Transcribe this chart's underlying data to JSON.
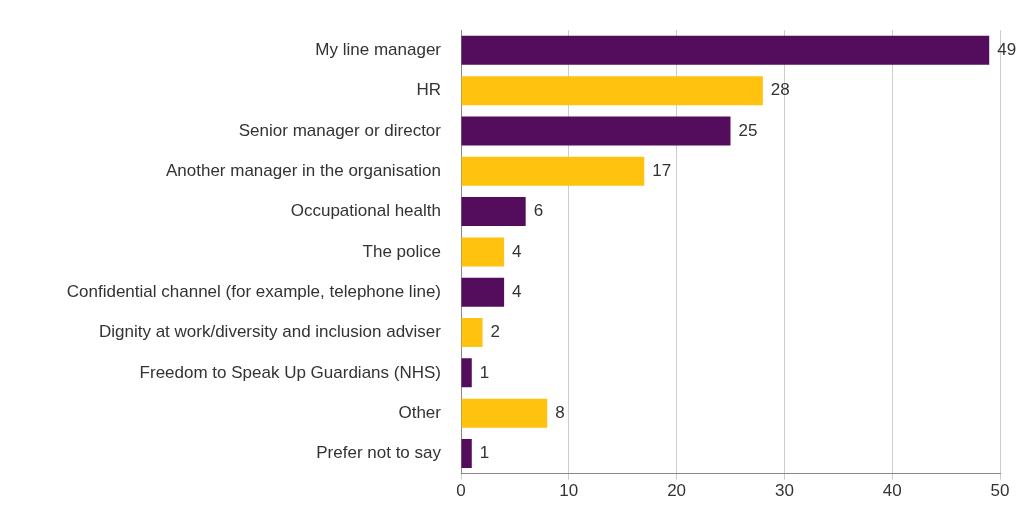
{
  "chart_data": {
    "type": "bar",
    "orientation": "horizontal",
    "categories": [
      "My line manager",
      "HR",
      "Senior manager or director",
      "Another manager in the organisation",
      "Occupational health",
      "The police",
      "Confidential channel (for example, telephone line)",
      "Dignity at work/diversity and inclusion adviser",
      "Freedom to Speak Up Guardians (NHS)",
      "Other",
      "Prefer not to say"
    ],
    "values": [
      49,
      28,
      25,
      17,
      6,
      4,
      4,
      2,
      1,
      8,
      1
    ],
    "colors": [
      "#540d5c",
      "#ffc20e",
      "#540d5c",
      "#ffc20e",
      "#540d5c",
      "#ffc20e",
      "#540d5c",
      "#ffc20e",
      "#540d5c",
      "#ffc20e",
      "#540d5c"
    ],
    "xlim": [
      0,
      50
    ],
    "xticks": [
      0,
      10,
      20,
      30,
      40,
      50
    ],
    "grid": "x",
    "legend": false,
    "data_labels": true
  }
}
